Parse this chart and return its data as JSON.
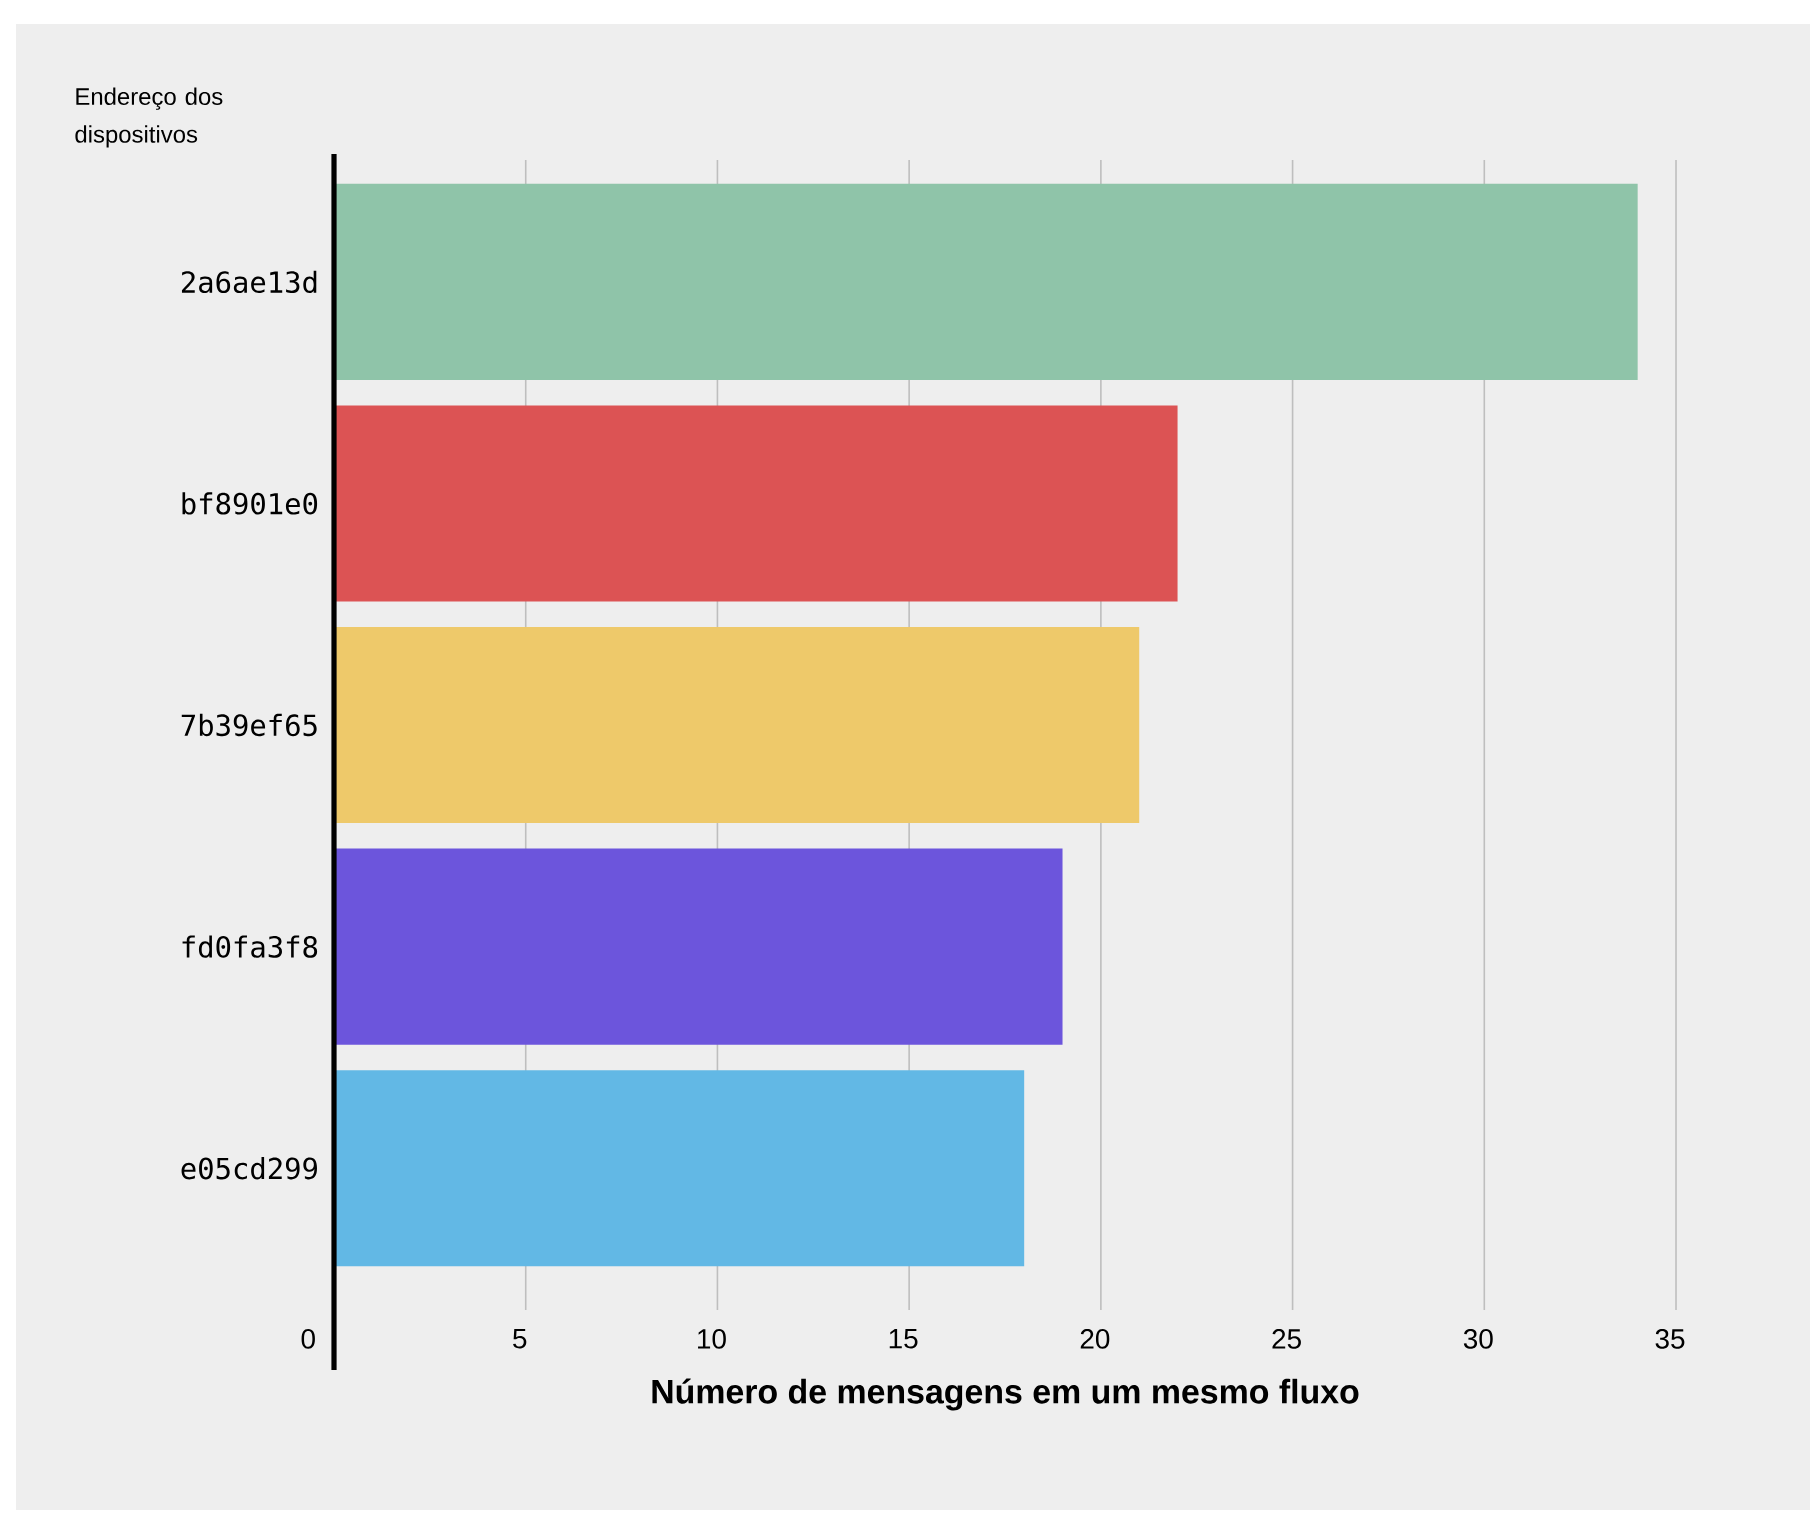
{
  "chart_data": {
    "type": "bar",
    "orientation": "horizontal",
    "ylabel": "Endereço dos dispositivos",
    "xlabel": "Número de mensagens em um mesmo fluxo",
    "categories": [
      "2a6ae13d",
      "bf8901e0",
      "7b39ef65",
      "fd0fa3f8",
      "e05cd299"
    ],
    "values": [
      34,
      22,
      21,
      19,
      18
    ],
    "colors": [
      "#8fc4a9",
      "#dc5354",
      "#eec96a",
      "#6c55dc",
      "#62b8e5"
    ],
    "xlim": [
      0,
      35
    ],
    "xticks": [
      0,
      5,
      10,
      15,
      20,
      25,
      30,
      35
    ],
    "grid": "x"
  }
}
